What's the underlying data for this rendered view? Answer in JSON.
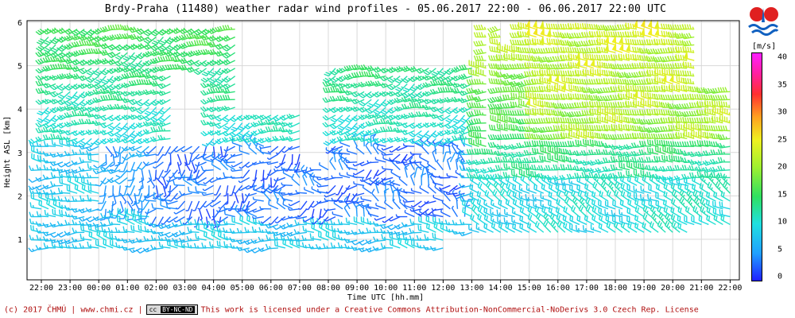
{
  "chart_data": {
    "type": "wind_barbs",
    "title": "Brdy-Praha (11480) weather radar wind profiles  -  05.06.2017 22:00 - 06.06.2017 22:00 UTC",
    "xlabel": "Time UTC [hh.mm]",
    "ylabel": "Height ASL [km]",
    "x_ticks": [
      "22:00",
      "23:00",
      "00:00",
      "01:00",
      "02:00",
      "03:00",
      "04:00",
      "05:00",
      "06:00",
      "07:00",
      "08:00",
      "09:00",
      "10:00",
      "11:00",
      "12:00",
      "13:00",
      "14:00",
      "15:00",
      "16:00",
      "17:00",
      "18:00",
      "19:00",
      "20:00",
      "21:00",
      "22:00"
    ],
    "y_ticks": [
      "1",
      "2",
      "3",
      "4",
      "5",
      "6"
    ],
    "ylim": [
      0.2,
      6
    ],
    "grid": true,
    "colorbar": {
      "unit": "[m/s]",
      "ticks": [
        "0",
        "5",
        "10",
        "15",
        "20",
        "25",
        "30",
        "35",
        "40"
      ],
      "range": [
        0,
        40
      ]
    },
    "samples": [
      {
        "t_h": 0.5,
        "z_km": 5.0,
        "speed": 11,
        "dir": 240
      },
      {
        "t_h": 4.5,
        "z_km": 5.3,
        "speed": 12,
        "dir": 250
      },
      {
        "t_h": 8.0,
        "z_km": 2.5,
        "speed": 3,
        "dir": 180
      },
      {
        "t_h": 12.5,
        "z_km": 1.0,
        "speed": 9,
        "dir": 290
      },
      {
        "t_h": 15.5,
        "z_km": 5.0,
        "speed": 18,
        "dir": 270
      },
      {
        "t_h": 18.5,
        "z_km": 1.8,
        "speed": 11,
        "dir": 300
      },
      {
        "t_h": 22.5,
        "z_km": 5.8,
        "speed": 24,
        "dir": 280
      }
    ]
  },
  "footer": {
    "copyright": "(c) 2017 ČHMÚ | www.chmi.cz |",
    "cc_badge": "cc",
    "cc_by": "BY-NC-ND",
    "license": "This work is licensed under a Creative Commons Attribution-NonCommercial-NoDerivs 3.0 Czech Rep. License"
  },
  "colors": {
    "low": "#2020ff",
    "mid": "#30e060",
    "high": "#ff20ff"
  }
}
